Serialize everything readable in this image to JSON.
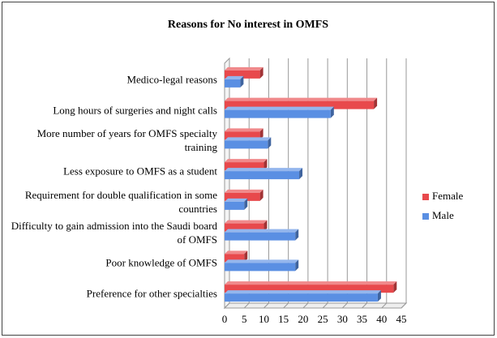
{
  "chart_data": {
    "type": "bar",
    "orientation": "horizontal",
    "title": "Reasons for No interest in OMFS",
    "categories": [
      "Medico-legal reasons",
      "Long hours of surgeries and night calls",
      "More number of years for OMFS specialty training",
      "Less exposure to OMFS as a student",
      "Requirement for double qualification in some countries",
      "Difficulty to gain admission into the Saudi board of OMFS",
      "Poor knowledge of OMFS",
      "Preference for other specialties"
    ],
    "series": [
      {
        "name": "Female",
        "color": "#e8494c",
        "values": [
          9,
          38,
          9,
          10,
          9,
          10,
          5,
          43
        ]
      },
      {
        "name": "Male",
        "color": "#5a8fe3",
        "values": [
          4,
          27,
          11,
          19,
          5,
          18,
          18,
          39
        ]
      }
    ],
    "xlim": [
      0,
      45
    ],
    "xticks": [
      0,
      5,
      10,
      15,
      20,
      25,
      30,
      35,
      40,
      45
    ],
    "grid": true,
    "legend": "right"
  }
}
